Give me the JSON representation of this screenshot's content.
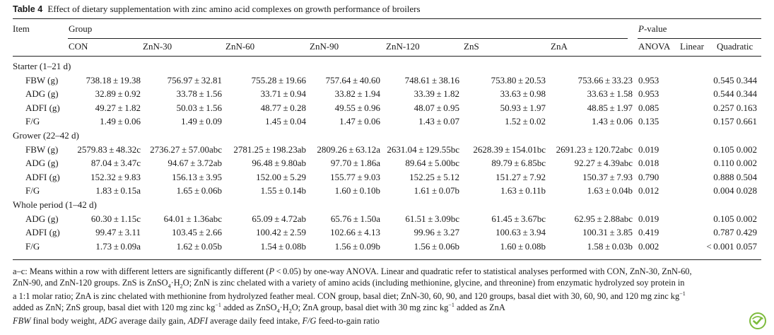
{
  "caption": {
    "label": "Table 4",
    "text": "Effect of dietary supplementation with zinc amino acid complexes on growth performance of broilers"
  },
  "header": {
    "item": "Item",
    "group": "Group",
    "pvalue_italic": "P",
    "pvalue_rest": "-value",
    "groups": [
      "CON",
      "ZnN-30",
      "ZnN-60",
      "ZnN-90",
      "ZnN-120",
      "ZnS",
      "ZnA"
    ],
    "pcols": [
      "ANOVA",
      "Linear",
      "Quadratic"
    ]
  },
  "sections": [
    {
      "title": "Starter (1–21 d)",
      "rows": [
        {
          "item": "FBW (g)",
          "values": [
            "738.18 ± 19.38",
            "756.97 ± 32.81",
            "755.28 ± 19.66",
            "757.64 ± 40.60",
            "748.61 ± 38.16",
            "753.80 ± 20.53",
            "753.66 ± 33.23"
          ],
          "anova": "0.953",
          "linquad": "0.545 0.344"
        },
        {
          "item": "ADG (g)",
          "values": [
            "32.89 ± 0.92",
            "33.78 ± 1.56",
            "33.71 ± 0.94",
            "33.82 ± 1.94",
            "33.39 ± 1.82",
            "33.63 ± 0.98",
            "33.63 ± 1.58"
          ],
          "anova": "0.953",
          "linquad": "0.544 0.344"
        },
        {
          "item": "ADFI (g)",
          "values": [
            "49.27 ± 1.82",
            "50.03 ± 1.56",
            "48.77 ± 0.28",
            "49.55 ± 0.96",
            "48.07 ± 0.95",
            "50.93 ± 1.97",
            "48.85 ± 1.97"
          ],
          "anova": "0.085",
          "linquad": "0.257 0.163"
        },
        {
          "item": "F/G",
          "values": [
            "1.49 ± 0.06",
            "1.49 ± 0.09",
            "1.45 ± 0.04",
            "1.47 ± 0.06",
            "1.43 ± 0.07",
            "1.52 ± 0.02",
            "1.43 ± 0.06"
          ],
          "anova": "0.135",
          "linquad": "0.157 0.661"
        }
      ]
    },
    {
      "title": "Grower (22–42 d)",
      "rows": [
        {
          "item": "FBW (g)",
          "values": [
            "2579.83 ± 48.32c",
            "2736.27 ± 57.00abc",
            "2781.25 ± 198.23ab",
            "2809.26 ± 63.12a",
            "2631.04 ± 129.55bc",
            "2628.39 ± 154.01bc",
            "2691.23 ± 120.72abc"
          ],
          "anova": "0.019",
          "linquad": "0.105 0.002"
        },
        {
          "item": "ADG (g)",
          "values": [
            "87.04 ± 3.47c",
            "94.67 ± 3.72ab",
            "96.48 ± 9.80ab",
            "97.70 ± 1.86a",
            "89.64 ± 5.00bc",
            "89.79 ± 6.85bc",
            "92.27 ± 4.39abc"
          ],
          "anova": "0.018",
          "linquad": "0.110 0.002"
        },
        {
          "item": "ADFI (g)",
          "values": [
            "152.32 ± 9.83",
            "156.13 ± 3.95",
            "152.00 ± 5.29",
            "155.77 ± 9.03",
            "152.25 ± 5.12",
            "151.27 ± 7.92",
            "150.37 ± 7.93"
          ],
          "anova": "0.790",
          "linquad": "0.888 0.504"
        },
        {
          "item": "F/G",
          "values": [
            "1.83 ± 0.15a",
            "1.65 ± 0.06b",
            "1.55 ± 0.14b",
            "1.60 ± 0.10b",
            "1.61 ± 0.07b",
            "1.63 ± 0.11b",
            "1.63 ± 0.04b"
          ],
          "anova": "0.012",
          "linquad": "0.004 0.028"
        }
      ]
    },
    {
      "title": "Whole period (1–42 d)",
      "rows": [
        {
          "item": "ADG (g)",
          "values": [
            "60.30 ± 1.15c",
            "64.01 ± 1.36abc",
            "65.09 ± 4.72ab",
            "65.76 ± 1.50a",
            "61.51 ± 3.09bc",
            "61.45 ± 3.67bc",
            "62.95 ± 2.88abc"
          ],
          "anova": "0.019",
          "linquad": "0.105 0.002"
        },
        {
          "item": "ADFI (g)",
          "values": [
            "99.47 ± 3.11",
            "103.45 ± 2.66",
            "100.42 ± 2.59",
            "102.66 ± 4.13",
            "99.96 ± 3.27",
            "100.63 ± 3.94",
            "100.31 ± 3.85"
          ],
          "anova": "0.419",
          "linquad": "0.787 0.429"
        },
        {
          "item": "F/G",
          "values": [
            "1.73 ± 0.09a",
            "1.62 ± 0.05b",
            "1.54 ± 0.08b",
            "1.56 ± 0.09b",
            "1.56 ± 0.06b",
            "1.60 ± 0.08b",
            "1.58 ± 0.03b"
          ],
          "anova": "0.002",
          "linquad": "< 0.001 0.057"
        }
      ]
    }
  ],
  "footnote": {
    "line1_a": "a–c: Means within a row with different letters are significantly different (",
    "line1_p": "P",
    "line1_b": " < 0.05) by one-way ANOVA. Linear and quadratic refer to statistical analyses performed with CON, ZnN-30, ZnN-60,",
    "line2_a": "ZnN-90, and ZnN-120 groups. ZnS is ZnSO",
    "line2_sub4": "4",
    "line2_dot": "·H",
    "line2_sub2": "2",
    "line2_b": "O; ZnN is zinc chelated with a variety of amino acids (including methionine, glycine, and threonine) from enzymatic hydrolyzed soy protein in",
    "line3_a": "a 1:1 molar ratio; ZnA is zinc chelated with methionine from hydrolyzed feather meal. CON group, basal diet; ZnN-30, 60, 90, and 120 groups, basal diet with 30, 60, 90, and 120 mg zinc kg",
    "line3_sup": "−1",
    "line4_a": "added as ZnN; ZnS group, basal diet with 120 mg zinc kg",
    "line4_sup1": "−1",
    "line4_b": " added as ZnSO",
    "line4_sub4": "4",
    "line4_dot": "·H",
    "line4_sub2": "2",
    "line4_c": "O; ZnA group, basal diet with 30 mg zinc kg",
    "line4_sup2": "−1",
    "line4_d": " added as ZnA",
    "abbr": [
      {
        "term": "FBW",
        "desc": " final body weight, "
      },
      {
        "term": "ADG",
        "desc": " average daily gain, "
      },
      {
        "term": "ADFI",
        "desc": " average daily feed intake, "
      },
      {
        "term": "F/G",
        "desc": " feed-to-gain ratio"
      }
    ]
  },
  "colors": {
    "badge": "#7dbb3c",
    "text": "#1a1a1a"
  },
  "icons": {
    "badge": "check-badge-icon"
  }
}
